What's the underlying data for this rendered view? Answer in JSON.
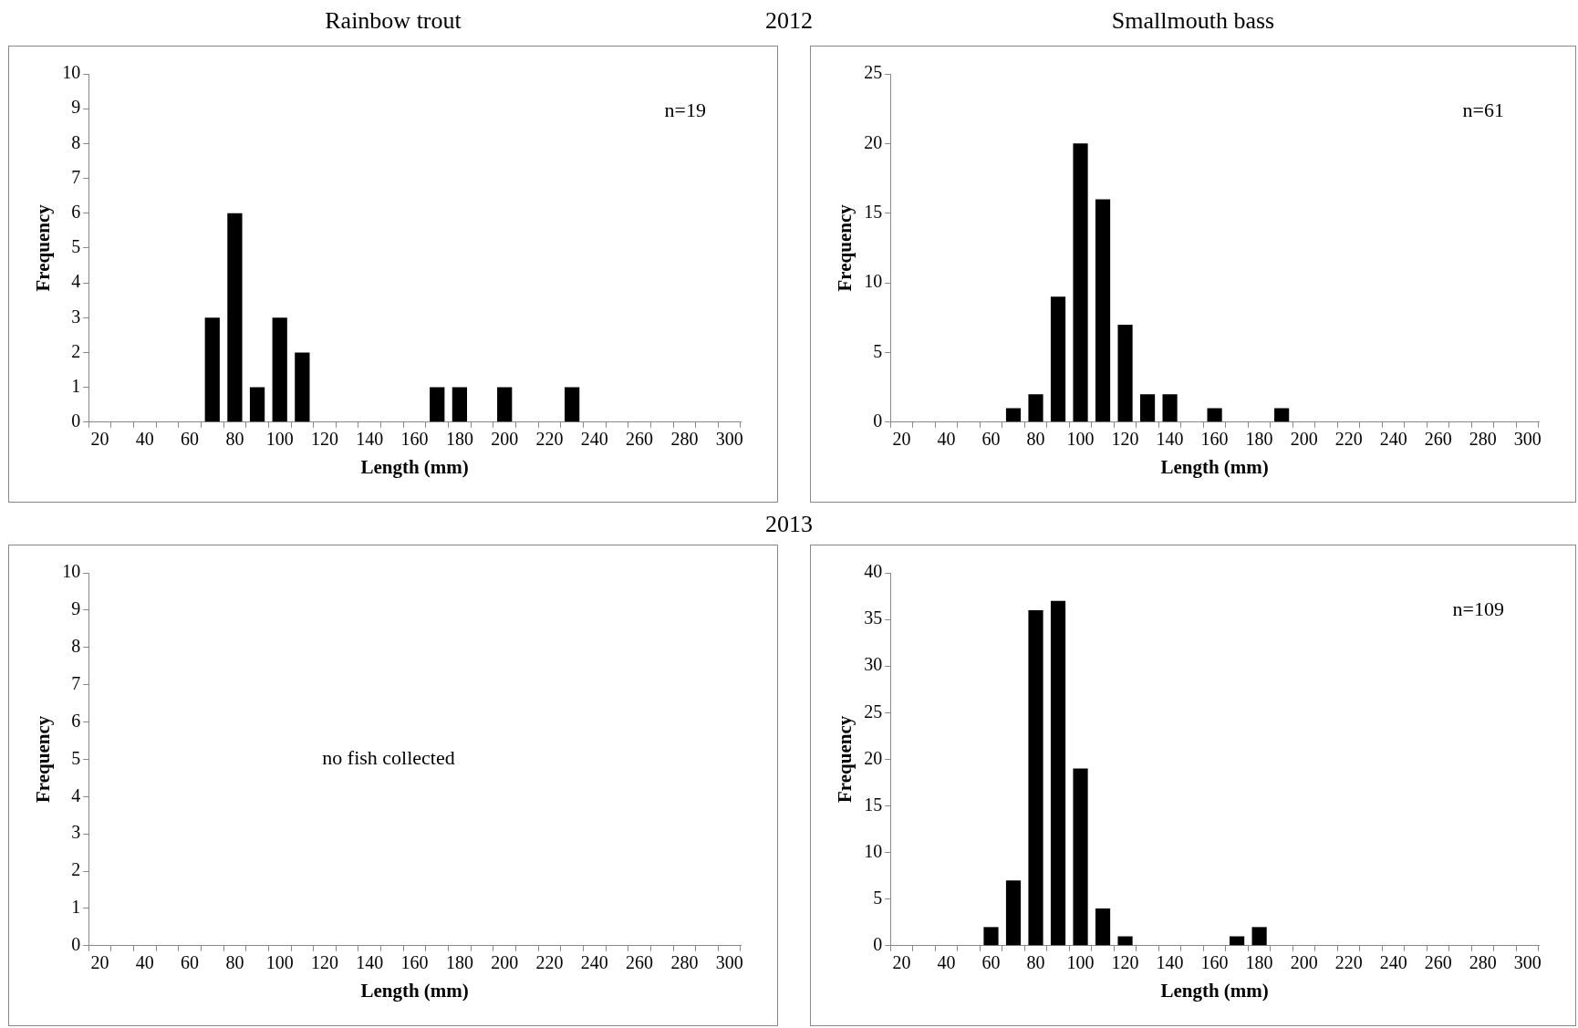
{
  "chart_data": [
    {
      "type": "bar",
      "title": "Rainbow trout",
      "xlabel": "Length (mm)",
      "ylabel": "Frequency",
      "categories": [
        "20",
        null,
        "40",
        null,
        "60",
        null,
        "80",
        null,
        "100",
        null,
        "120",
        null,
        "140",
        null,
        "160",
        null,
        "180",
        null,
        "200",
        null,
        "220",
        null,
        "240",
        null,
        "260",
        null,
        "280",
        null,
        "300"
      ],
      "values": [
        0,
        0,
        0,
        0,
        0,
        3,
        6,
        1,
        3,
        2,
        0,
        0,
        0,
        0,
        0,
        1,
        1,
        0,
        1,
        0,
        0,
        1,
        0,
        0,
        0,
        0,
        0,
        0,
        0
      ],
      "color": "#000000",
      "ylim": [
        0,
        10
      ],
      "yticks": [
        0,
        1,
        2,
        3,
        4,
        5,
        6,
        7,
        8,
        9,
        10
      ],
      "grid": false,
      "legend": false,
      "annotations": [
        "n=19"
      ]
    },
    {
      "type": "other",
      "title": "2012"
    },
    {
      "type": "bar",
      "title": "Smallmouth bass",
      "xlabel": "Length (mm)",
      "ylabel": "Frequency",
      "categories": [
        "20",
        null,
        "40",
        null,
        "60",
        null,
        "80",
        null,
        "100",
        null,
        "120",
        null,
        "140",
        null,
        "160",
        null,
        "180",
        null,
        "200",
        null,
        "220",
        null,
        "240",
        null,
        "260",
        null,
        "280",
        null,
        "300"
      ],
      "values": [
        0,
        0,
        0,
        0,
        0,
        1,
        2,
        9,
        20,
        16,
        7,
        2,
        2,
        0,
        1,
        0,
        0,
        1,
        0,
        0,
        0,
        0,
        0,
        0,
        0,
        0,
        0,
        0,
        0
      ],
      "color": "#000000",
      "ylim": [
        0,
        25
      ],
      "yticks": [
        0,
        5,
        10,
        15,
        20,
        25
      ],
      "grid": false,
      "legend": false,
      "annotations": [
        "n=61"
      ]
    },
    {
      "type": "other",
      "title": "2013"
    },
    {
      "type": "bar",
      "xlabel": "Length (mm)",
      "ylabel": "Frequency",
      "categories": [
        "20",
        null,
        "40",
        null,
        "60",
        null,
        "80",
        null,
        "100",
        null,
        "120",
        null,
        "140",
        null,
        "160",
        null,
        "180",
        null,
        "200",
        null,
        "220",
        null,
        "240",
        null,
        "260",
        null,
        "280",
        null,
        "300"
      ],
      "values": [
        0,
        0,
        0,
        0,
        0,
        0,
        0,
        0,
        0,
        0,
        0,
        0,
        0,
        0,
        0,
        0,
        0,
        0,
        0,
        0,
        0,
        0,
        0,
        0,
        0,
        0,
        0,
        0,
        0
      ],
      "color": "#000000",
      "ylim": [
        0,
        10
      ],
      "yticks": [
        0,
        1,
        2,
        3,
        4,
        5,
        6,
        7,
        8,
        9,
        10
      ],
      "grid": false,
      "legend": false,
      "annotations": [
        "no fish collected"
      ]
    },
    {
      "type": "bar",
      "xlabel": "Length (mm)",
      "ylabel": "Frequency",
      "categories": [
        "20",
        null,
        "40",
        null,
        "60",
        null,
        "80",
        null,
        "100",
        null,
        "120",
        null,
        "140",
        null,
        "160",
        null,
        "180",
        null,
        "200",
        null,
        "220",
        null,
        "240",
        null,
        "260",
        null,
        "280",
        null,
        "300"
      ],
      "values": [
        0,
        0,
        0,
        0,
        2,
        7,
        36,
        37,
        19,
        4,
        1,
        0,
        0,
        0,
        0,
        1,
        2,
        0,
        0,
        0,
        0,
        0,
        0,
        0,
        0,
        0,
        0,
        0,
        0
      ],
      "color": "#000000",
      "ylim": [
        0,
        40
      ],
      "yticks": [
        0,
        5,
        10,
        15,
        20,
        25,
        30,
        35,
        40
      ],
      "grid": false,
      "legend": false,
      "annotations": [
        "n=109"
      ]
    }
  ]
}
